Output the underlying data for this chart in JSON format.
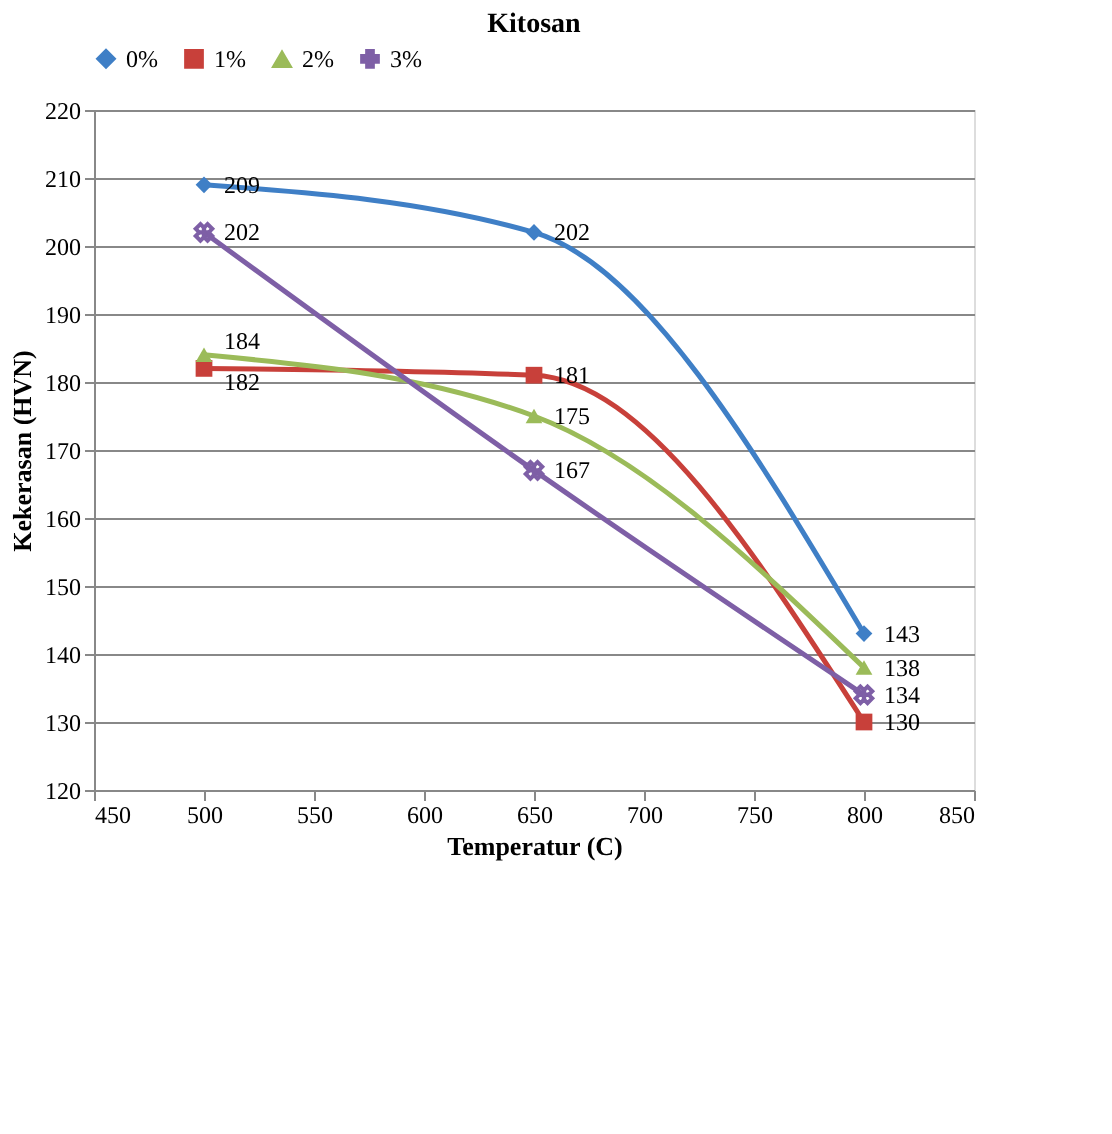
{
  "chart_data": {
    "type": "line",
    "title": "Kitosan",
    "xlabel": "Temperatur (C)",
    "ylabel": "Kekerasan (HVN)",
    "x": [
      500,
      650,
      800
    ],
    "series": [
      {
        "name": "0%",
        "color": "#3f7fc6",
        "values": [
          209,
          202,
          143
        ],
        "marker": "diamond"
      },
      {
        "name": "1%",
        "color": "#c8403a",
        "values": [
          182,
          181,
          130
        ],
        "marker": "square"
      },
      {
        "name": "2%",
        "color": "#9bbb59",
        "values": [
          184,
          175,
          138
        ],
        "marker": "triangle"
      },
      {
        "name": "3%",
        "color": "#7e5fa6",
        "values": [
          202,
          167,
          134
        ],
        "marker": "cross"
      }
    ],
    "xlim": [
      450,
      850
    ],
    "xticks": [
      450,
      500,
      550,
      600,
      650,
      700,
      750,
      800,
      850
    ],
    "ylim": [
      120,
      220
    ],
    "yticks": [
      120,
      130,
      140,
      150,
      160,
      170,
      180,
      190,
      200,
      210,
      220
    ],
    "grid": "y",
    "legend": "top",
    "data_labels": true,
    "line_style": "solid"
  }
}
